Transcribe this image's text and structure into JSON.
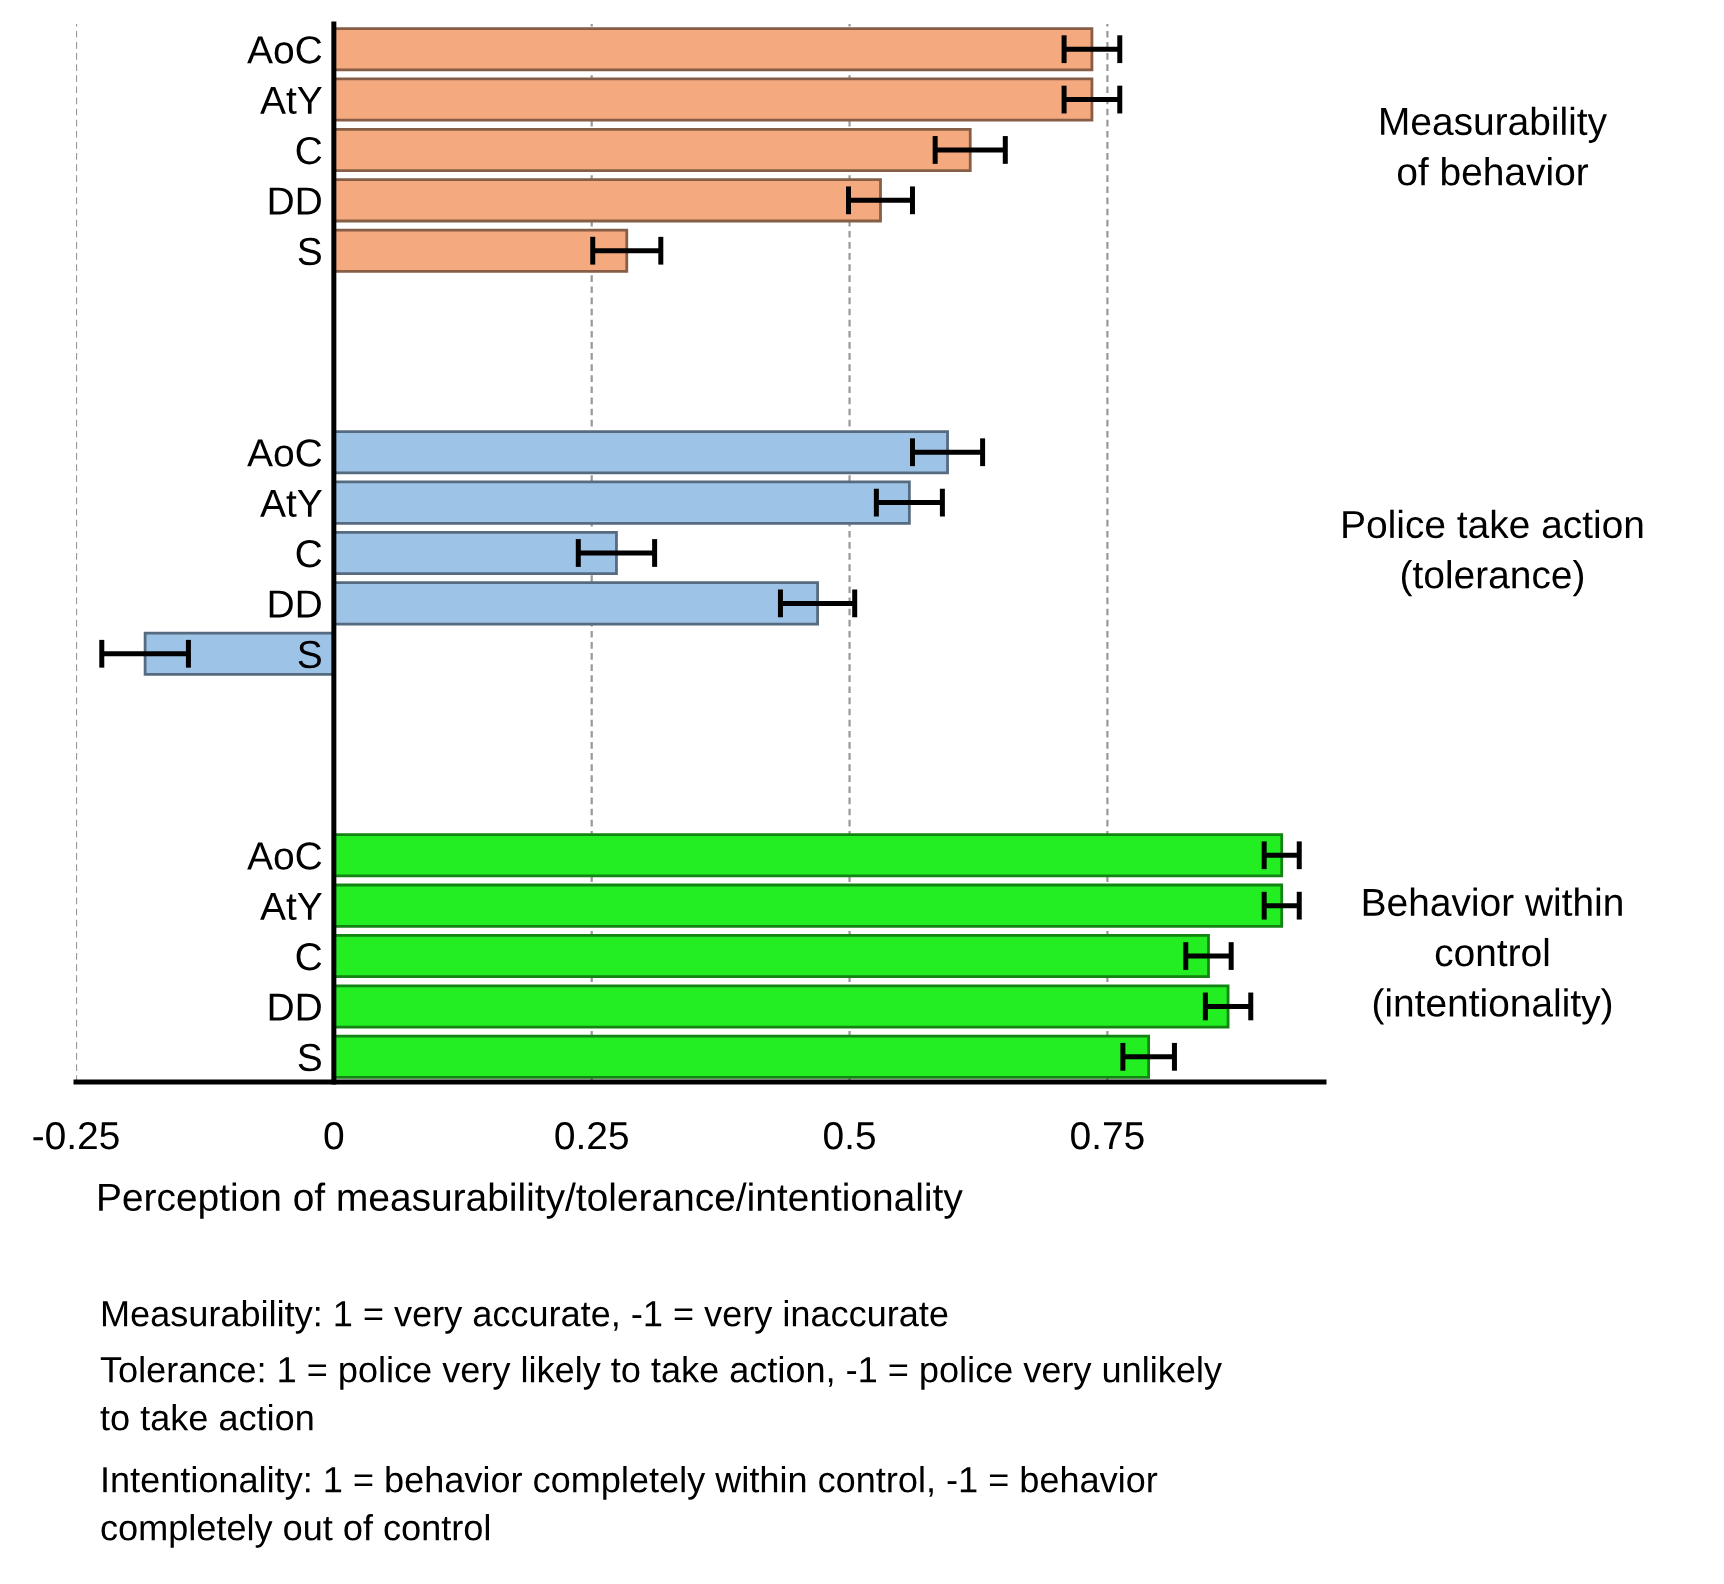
{
  "chart_data": {
    "type": "bar",
    "orientation": "horizontal",
    "categories": [
      "AoC",
      "AtY",
      "C",
      "DD",
      "S",
      null,
      null,
      null,
      "AoC",
      "AtY",
      "C",
      "DD",
      "S",
      null,
      null,
      null,
      "AoC",
      "AtY",
      "C",
      "DD",
      "S"
    ],
    "values": [
      0.735,
      0.735,
      0.617,
      0.53,
      0.284,
      null,
      null,
      null,
      0.595,
      0.558,
      0.274,
      0.469,
      -0.183,
      null,
      null,
      null,
      0.919,
      0.919,
      0.848,
      0.867,
      0.79
    ],
    "errors": [
      0.027,
      0.027,
      0.034,
      0.031,
      0.033,
      null,
      null,
      null,
      0.034,
      0.032,
      0.037,
      0.036,
      0.042,
      null,
      null,
      null,
      0.017,
      0.017,
      0.022,
      0.022,
      0.025
    ],
    "colors": [
      "#f4a97e",
      "#f4a97e",
      "#f4a97e",
      "#f4a97e",
      "#f4a97e",
      null,
      null,
      null,
      "#9dc3e6",
      "#9dc3e6",
      "#9dc3e6",
      "#9dc3e6",
      "#9dc3e6",
      null,
      null,
      null,
      "#22ee22",
      "#22ee22",
      "#22ee22",
      "#22ee22",
      "#22ee22"
    ],
    "xlabel": "Perception of measurability/tolerance/intentionality",
    "xlim": [
      -0.25,
      0.96
    ],
    "xticks": [
      -0.25,
      0,
      0.25,
      0.5,
      0.75
    ],
    "grid": "x",
    "annotations": [
      "Measurability\nof behavior",
      "Police take action\n(tolerance)",
      "Behavior within\ncontrol\n(intentionality)",
      "Measurability: 1 = very accurate, -1 = very inaccurate",
      "Tolerance: 1 = police very likely to take action, -1 = police very unlikely\nto take action",
      "Intentionality: 1 = behavior completely within control, -1 = behavior\ncompletely out of control"
    ]
  }
}
